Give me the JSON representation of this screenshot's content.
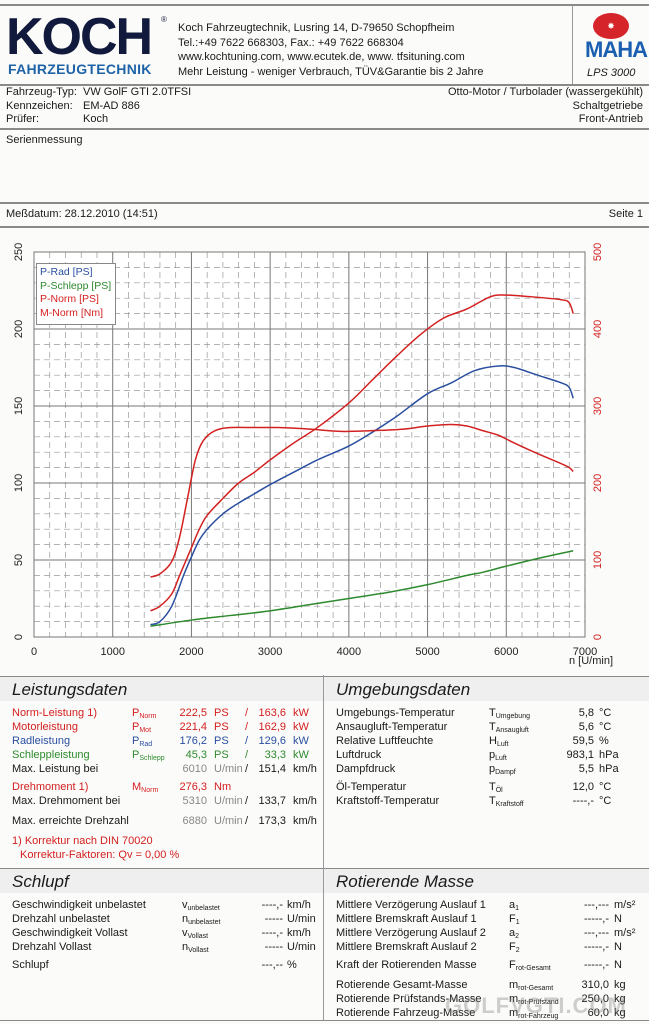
{
  "header": {
    "logo_main": "KOCH",
    "logo_sub": "FAHRZEUGTECHNIK",
    "logo_reg": "®",
    "address_lines": [
      "Koch Fahrzeugtechnik, Lusring 14, D-79650 Schopfheim",
      "Tel.:+49 7622 668303, Fax.: +49 7622 668304",
      "www.kochtuning.com, www.ecutek.de, www. tfsituning.com",
      "Mehr Leistung - weniger Verbrauch, TÜV&Garantie bis 2 Jahre"
    ],
    "maha_logo": "MAHA",
    "maha_circle": "✸",
    "maha_model": "LPS 3000"
  },
  "vehicle": {
    "type_label": "Fahrzeug-Typ:",
    "type_value": "VW GolF GTI 2.0TFSI",
    "plate_label": "Kennzeichen:",
    "plate_value": "EM-AD 886",
    "tester_label": "Prüfer:",
    "tester_value": "Koch",
    "engine": "Otto-Motor / Turbolader (wassergekühlt)",
    "gearbox": "Schaltgetriebe",
    "drive": "Front-Antrieb"
  },
  "measurement_type": "Serienmessung",
  "date": "Meßdatum: 28.12.2010 (14:51)",
  "page": "Seite 1",
  "chart_data": {
    "type": "line",
    "xlabel": "n [U/min]",
    "xlim": [
      0,
      7000
    ],
    "xticks": [
      0,
      1000,
      2000,
      3000,
      4000,
      5000,
      6000,
      7000
    ],
    "ylim_left": [
      0,
      250
    ],
    "yticks_left": [
      0,
      50,
      100,
      150,
      200,
      250
    ],
    "ylim_right": [
      0,
      500
    ],
    "yticks_right": [
      0,
      100,
      200,
      300,
      400,
      500
    ],
    "grid": true,
    "legend_position": "top-left",
    "series": [
      {
        "name": "P-Rad [PS]",
        "color": "#2a4fa0",
        "axis": "left",
        "x": [
          1480,
          1600,
          1750,
          1900,
          2000,
          2100,
          2200,
          2400,
          2600,
          2800,
          3000,
          3300,
          3600,
          4000,
          4300,
          4600,
          5000,
          5300,
          5600,
          5900,
          6100,
          6400,
          6700,
          6800,
          6850
        ],
        "y": [
          8,
          10,
          20,
          40,
          52,
          63,
          70,
          80,
          87,
          93,
          99,
          107,
          115,
          124,
          133,
          143,
          158,
          165,
          173,
          176,
          175,
          170,
          165,
          162,
          155
        ]
      },
      {
        "name": "P-Schlepp [PS]",
        "color": "#2e8a2e",
        "axis": "left",
        "x": [
          1480,
          2000,
          2500,
          3000,
          3500,
          4000,
          4500,
          5000,
          5500,
          5700,
          6000,
          6400,
          6850
        ],
        "y": [
          7,
          11,
          14,
          17,
          21,
          25,
          29,
          34,
          40,
          42,
          46,
          51,
          56
        ]
      },
      {
        "name": "P-Norm [PS]",
        "color": "#d32020",
        "axis": "left",
        "x": [
          1480,
          1600,
          1750,
          1850,
          2000,
          2100,
          2200,
          2400,
          2600,
          2800,
          3000,
          3300,
          3600,
          4000,
          4300,
          4600,
          4900,
          5200,
          5500,
          5800,
          6000,
          6300,
          6700,
          6800,
          6850
        ],
        "y": [
          17,
          20,
          28,
          40,
          58,
          70,
          79,
          90,
          100,
          107,
          115,
          126,
          136,
          152,
          167,
          182,
          196,
          207,
          213,
          221,
          222,
          221,
          219,
          217,
          210
        ]
      },
      {
        "name": "M-Norm [Nm]",
        "color": "#d32020",
        "axis": "right",
        "x": [
          1480,
          1600,
          1750,
          1850,
          1950,
          2050,
          2150,
          2300,
          2500,
          2800,
          3100,
          3500,
          3900,
          4300,
          4700,
          5000,
          5300,
          5500,
          5700,
          5900,
          6100,
          6400,
          6700,
          6800,
          6850
        ],
        "y": [
          78,
          82,
          98,
          130,
          180,
          230,
          255,
          268,
          272,
          272,
          272,
          270,
          267,
          268,
          270,
          274,
          276,
          274,
          268,
          262,
          252,
          238,
          225,
          220,
          215
        ]
      }
    ]
  },
  "leistung": {
    "title": "Leistungsdaten",
    "rows": [
      {
        "label": "Norm-Leistung 1)",
        "sym": "P",
        "sub": "Norm",
        "v1": "222,5",
        "u1": "PS",
        "sep": "/",
        "v2": "163,6",
        "u2": "kW",
        "color": "red"
      },
      {
        "label": "Motorleistung",
        "sym": "P",
        "sub": "Mot",
        "v1": "221,4",
        "u1": "PS",
        "sep": "/",
        "v2": "162,9",
        "u2": "kW",
        "color": "red"
      },
      {
        "label": "Radleistung",
        "sym": "P",
        "sub": "Rad",
        "v1": "176,2",
        "u1": "PS",
        "sep": "/",
        "v2": "129,6",
        "u2": "kW",
        "color": "blue"
      },
      {
        "label": "Schleppleistung",
        "sym": "P",
        "sub": "Schlepp",
        "v1": "45,3",
        "u1": "PS",
        "sep": "/",
        "v2": "33,3",
        "u2": "kW",
        "color": "green"
      },
      {
        "label": "Max. Leistung bei",
        "sym": "",
        "sub": "",
        "v1": "6010",
        "u1": "U/min",
        "sep": "/",
        "v2": "151,4",
        "u2": "km/h",
        "color": "black"
      }
    ],
    "torque": {
      "label": "Drehmoment 1)",
      "sym": "M",
      "sub": "Norm",
      "v1": "276,3",
      "u1": "Nm"
    },
    "max_torque": {
      "label": "Max. Drehmoment bei",
      "v1": "5310",
      "u1": "U/min",
      "sep": "/",
      "v2": "133,7",
      "u2": "km/h"
    },
    "max_rpm": {
      "label": "Max. erreichte Drehzahl",
      "v1": "6880",
      "u1": "U/min",
      "sep": "/",
      "v2": "173,3",
      "u2": "km/h"
    },
    "note1": "1) Korrektur nach DIN 70020",
    "note2": "Korrektur-Faktoren: Qv =   0,00 %"
  },
  "umgebung": {
    "title": "Umgebungsdaten",
    "rows": [
      {
        "label": "Umgebungs-Temperatur",
        "sym": "T",
        "sub": "Umgebung",
        "value": "5,8",
        "unit": "°C"
      },
      {
        "label": "Ansaugluft-Temperatur",
        "sym": "T",
        "sub": "Ansaugluft",
        "value": "5,6",
        "unit": "°C"
      },
      {
        "label": "Relative Luftfeuchte",
        "sym": "H",
        "sub": "Luft",
        "value": "59,5",
        "unit": "%"
      },
      {
        "label": "Luftdruck",
        "sym": "p",
        "sub": "Luft",
        "value": "983,1",
        "unit": "hPa"
      },
      {
        "label": "Dampfdruck",
        "sym": "p",
        "sub": "Dampf",
        "value": "5,5",
        "unit": "hPa"
      },
      {
        "label": "Öl-Temperatur",
        "sym": "T",
        "sub": "Öl",
        "value": "12,0",
        "unit": "°C"
      },
      {
        "label": "Kraftstoff-Temperatur",
        "sym": "T",
        "sub": "Kraftstoff",
        "value": "----,-",
        "unit": "°C"
      }
    ]
  },
  "schlupf": {
    "title": "Schlupf",
    "rows": [
      {
        "label": "Geschwindigkeit unbelastet",
        "sym": "v",
        "sub": "unbelastet",
        "value": "----,-",
        "unit": "km/h"
      },
      {
        "label": "Drehzahl unbelastet",
        "sym": "n",
        "sub": "unbelastet",
        "value": "-----",
        "unit": "U/min"
      },
      {
        "label": "Geschwindigkeit Vollast",
        "sym": "v",
        "sub": "Vollast",
        "value": "----,-",
        "unit": "km/h"
      },
      {
        "label": "Drehzahl Vollast",
        "sym": "n",
        "sub": "Vollast",
        "value": "-----",
        "unit": "U/min"
      },
      {
        "label": "Schlupf",
        "sym": "",
        "sub": "",
        "value": "---,--",
        "unit": "%"
      }
    ]
  },
  "rot_masse": {
    "title": "Rotierende Masse",
    "rows": [
      {
        "label": "Mittlere Verzögerung Auslauf 1",
        "sym": "a",
        "sub": "1",
        "value": "---,---",
        "unit": "m/s²"
      },
      {
        "label": "Mittlere Bremskraft Auslauf 1",
        "sym": "F",
        "sub": "1",
        "value": "-----,-",
        "unit": "N"
      },
      {
        "label": "Mittlere Verzögerung Auslauf 2",
        "sym": "a",
        "sub": "2",
        "value": "---,---",
        "unit": "m/s²"
      },
      {
        "label": "Mittlere Bremskraft Auslauf 2",
        "sym": "F",
        "sub": "2",
        "value": "-----,-",
        "unit": "N"
      },
      {
        "label": "Kraft der Rotierenden Masse",
        "sym": "F",
        "sub": "rot-Gesamt",
        "value": "-----,-",
        "unit": "N"
      },
      {
        "label": "Rotierende Gesamt-Masse",
        "sym": "m",
        "sub": "rot-Gesamt",
        "value": "310,0",
        "unit": "kg"
      },
      {
        "label": "Rotierende Prüfstands-Masse",
        "sym": "m",
        "sub": "rot-Prüfstand",
        "value": "250,0",
        "unit": "kg"
      },
      {
        "label": "Rotierende Fahrzeug-Masse",
        "sym": "m",
        "sub": "rot-Fahrzeug",
        "value": "60,0",
        "unit": "kg"
      }
    ]
  },
  "watermark": "GOLFVGTI.COM"
}
